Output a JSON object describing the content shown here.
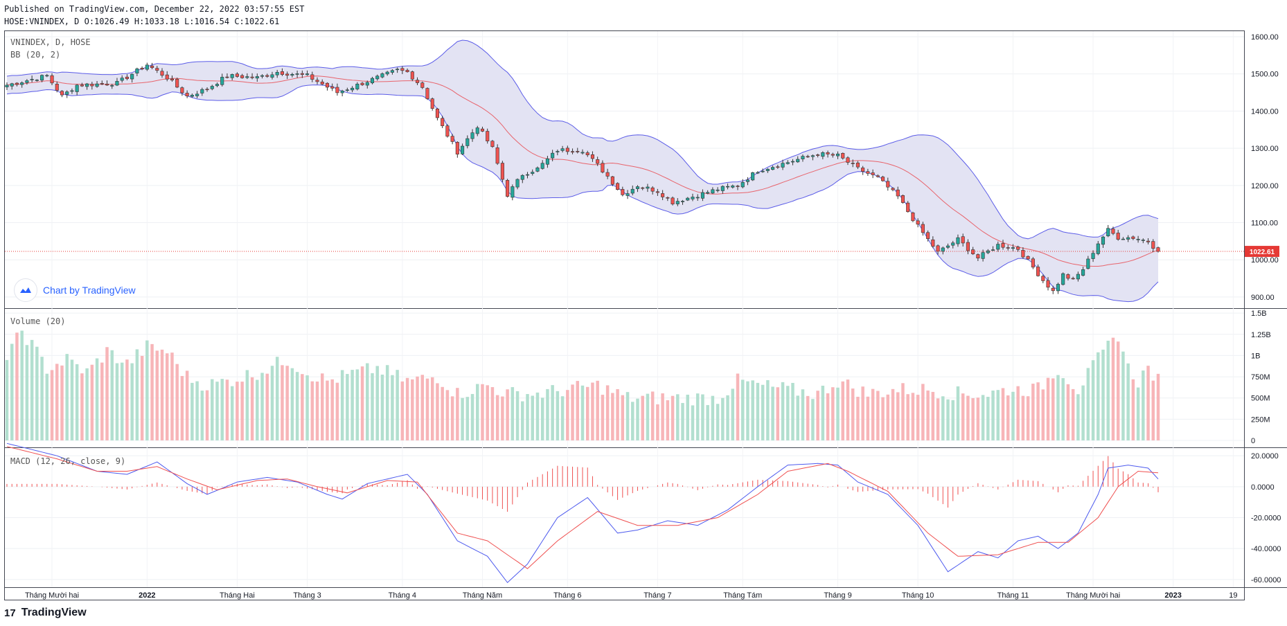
{
  "header": {
    "published": "Published on TradingView.com, December 22, 2022 03:57:55 EST",
    "ohlc": "HOSE:VNINDEX, D O:1026.49 H:1033.18 L:1016.54 C:1022.61"
  },
  "panes": {
    "price": {
      "symbol_label": "VNINDEX, D, HOSE",
      "indicator_label": "BB (20, 2)"
    },
    "volume": {
      "label": "Volume (20)"
    },
    "macd": {
      "label": "MACD (12, 26, close, 9)"
    }
  },
  "branding": {
    "chart_by": "Chart by TradingView",
    "footer": "TradingView"
  },
  "colors": {
    "up": "#26a69a",
    "down": "#ef5350",
    "up_vol": "#b2dfcf",
    "down_vol": "#f7b5b8",
    "bb_band": "#5b5ce8",
    "bb_fill": "#e3e3f3",
    "bb_basis": "#e8636b",
    "macd_line": "#4d5aee",
    "signal_line": "#ef4f4f",
    "hist": "#ef4f4f",
    "last_price": "#e53935"
  },
  "chart_data": {
    "type": "candlestick",
    "title": "VNINDEX, D, HOSE",
    "last_price": 1022.61,
    "last_price_label": "1022.61",
    "price_axis": {
      "range": [
        870,
        1615
      ],
      "ticks": [
        "1600.00",
        "1500.00",
        "1400.00",
        "1300.00",
        "1200.00",
        "1100.00",
        "1000.00",
        "900.00"
      ],
      "tick_values": [
        1600,
        1500,
        1400,
        1300,
        1200,
        1100,
        1000,
        900
      ]
    },
    "volume_axis": {
      "range": [
        0,
        1.55
      ],
      "unit": "B",
      "ticks": [
        "1.5B",
        "1.25B",
        "1B",
        "750M",
        "500M",
        "250M",
        "0"
      ],
      "tick_values": [
        1.5,
        1.25,
        1,
        0.75,
        0.5,
        0.25,
        0
      ]
    },
    "macd_axis": {
      "range": [
        -65,
        25
      ],
      "ticks": [
        "20.0000",
        "0.0000",
        "-20.0000",
        "-40.0000",
        "-60.0000"
      ],
      "tick_values": [
        20,
        0,
        -20,
        -40,
        -60
      ]
    },
    "x_axis": {
      "labels": [
        "Tháng Mười hai",
        "2022",
        "Tháng Hai",
        "Tháng 3",
        "Tháng 4",
        "Tháng Năm",
        "Tháng 6",
        "Tháng 7",
        "Tháng Tám",
        "Tháng 9",
        "Tháng 10",
        "Tháng 11",
        "Tháng Mười hai",
        "2023",
        "19"
      ],
      "label_bar_index": [
        9,
        28,
        46,
        60,
        79,
        95,
        112,
        130,
        147,
        166,
        182,
        201,
        217,
        233,
        245
      ],
      "bold": [
        "2022",
        "2023"
      ]
    },
    "close_keypoints": [
      {
        "i": 0,
        "v": 1470
      },
      {
        "i": 8,
        "v": 1495
      },
      {
        "i": 11,
        "v": 1440
      },
      {
        "i": 14,
        "v": 1470
      },
      {
        "i": 22,
        "v": 1475
      },
      {
        "i": 28,
        "v": 1525
      },
      {
        "i": 32,
        "v": 1490
      },
      {
        "i": 36,
        "v": 1440
      },
      {
        "i": 40,
        "v": 1460
      },
      {
        "i": 44,
        "v": 1495
      },
      {
        "i": 50,
        "v": 1490
      },
      {
        "i": 54,
        "v": 1505
      },
      {
        "i": 60,
        "v": 1495
      },
      {
        "i": 64,
        "v": 1465
      },
      {
        "i": 66,
        "v": 1450
      },
      {
        "i": 70,
        "v": 1470
      },
      {
        "i": 74,
        "v": 1490
      },
      {
        "i": 78,
        "v": 1510
      },
      {
        "i": 80,
        "v": 1505
      },
      {
        "i": 83,
        "v": 1465
      },
      {
        "i": 86,
        "v": 1380
      },
      {
        "i": 90,
        "v": 1290
      },
      {
        "i": 94,
        "v": 1360
      },
      {
        "i": 97,
        "v": 1300
      },
      {
        "i": 100,
        "v": 1175
      },
      {
        "i": 103,
        "v": 1230
      },
      {
        "i": 106,
        "v": 1245
      },
      {
        "i": 110,
        "v": 1295
      },
      {
        "i": 115,
        "v": 1295
      },
      {
        "i": 118,
        "v": 1255
      },
      {
        "i": 120,
        "v": 1225
      },
      {
        "i": 123,
        "v": 1175
      },
      {
        "i": 126,
        "v": 1200
      },
      {
        "i": 130,
        "v": 1185
      },
      {
        "i": 133,
        "v": 1155
      },
      {
        "i": 137,
        "v": 1170
      },
      {
        "i": 142,
        "v": 1190
      },
      {
        "i": 146,
        "v": 1200
      },
      {
        "i": 150,
        "v": 1240
      },
      {
        "i": 154,
        "v": 1255
      },
      {
        "i": 158,
        "v": 1270
      },
      {
        "i": 162,
        "v": 1285
      },
      {
        "i": 166,
        "v": 1280
      },
      {
        "i": 170,
        "v": 1245
      },
      {
        "i": 174,
        "v": 1220
      },
      {
        "i": 178,
        "v": 1170
      },
      {
        "i": 182,
        "v": 1090
      },
      {
        "i": 186,
        "v": 1020
      },
      {
        "i": 190,
        "v": 1055
      },
      {
        "i": 194,
        "v": 1005
      },
      {
        "i": 198,
        "v": 1040
      },
      {
        "i": 202,
        "v": 1030
      },
      {
        "i": 205,
        "v": 980
      },
      {
        "i": 207,
        "v": 945
      },
      {
        "i": 209,
        "v": 915
      },
      {
        "i": 211,
        "v": 960
      },
      {
        "i": 213,
        "v": 945
      },
      {
        "i": 215,
        "v": 975
      },
      {
        "i": 218,
        "v": 1045
      },
      {
        "i": 220,
        "v": 1080
      },
      {
        "i": 222,
        "v": 1060
      },
      {
        "i": 225,
        "v": 1060
      },
      {
        "i": 228,
        "v": 1050
      },
      {
        "i": 230,
        "v": 1022.61
      }
    ],
    "volume_keypoints_B": [
      {
        "i": 0,
        "v": 0.95
      },
      {
        "i": 3,
        "v": 1.3
      },
      {
        "i": 8,
        "v": 0.85
      },
      {
        "i": 12,
        "v": 0.95
      },
      {
        "i": 16,
        "v": 0.8
      },
      {
        "i": 20,
        "v": 1.05
      },
      {
        "i": 24,
        "v": 0.9
      },
      {
        "i": 28,
        "v": 1.1
      },
      {
        "i": 32,
        "v": 1.05
      },
      {
        "i": 36,
        "v": 0.75
      },
      {
        "i": 40,
        "v": 0.65
      },
      {
        "i": 44,
        "v": 0.7
      },
      {
        "i": 50,
        "v": 0.8
      },
      {
        "i": 56,
        "v": 0.95
      },
      {
        "i": 60,
        "v": 0.8
      },
      {
        "i": 64,
        "v": 0.7
      },
      {
        "i": 70,
        "v": 0.8
      },
      {
        "i": 74,
        "v": 0.85
      },
      {
        "i": 80,
        "v": 0.7
      },
      {
        "i": 86,
        "v": 0.75
      },
      {
        "i": 90,
        "v": 0.55
      },
      {
        "i": 96,
        "v": 0.65
      },
      {
        "i": 100,
        "v": 0.55
      },
      {
        "i": 106,
        "v": 0.55
      },
      {
        "i": 112,
        "v": 0.6
      },
      {
        "i": 118,
        "v": 0.65
      },
      {
        "i": 124,
        "v": 0.5
      },
      {
        "i": 130,
        "v": 0.5
      },
      {
        "i": 136,
        "v": 0.5
      },
      {
        "i": 142,
        "v": 0.5
      },
      {
        "i": 146,
        "v": 0.7
      },
      {
        "i": 150,
        "v": 0.65
      },
      {
        "i": 156,
        "v": 0.6
      },
      {
        "i": 162,
        "v": 0.55
      },
      {
        "i": 166,
        "v": 0.7
      },
      {
        "i": 172,
        "v": 0.55
      },
      {
        "i": 178,
        "v": 0.6
      },
      {
        "i": 184,
        "v": 0.6
      },
      {
        "i": 190,
        "v": 0.55
      },
      {
        "i": 196,
        "v": 0.55
      },
      {
        "i": 200,
        "v": 0.6
      },
      {
        "i": 206,
        "v": 0.6
      },
      {
        "i": 210,
        "v": 0.85
      },
      {
        "i": 214,
        "v": 0.6
      },
      {
        "i": 218,
        "v": 0.95
      },
      {
        "i": 222,
        "v": 1.25
      },
      {
        "i": 224,
        "v": 0.85
      },
      {
        "i": 226,
        "v": 0.7
      },
      {
        "i": 228,
        "v": 0.85
      },
      {
        "i": 230,
        "v": 0.7
      }
    ],
    "macd_keypoints": [
      {
        "i": 0,
        "v": 28
      },
      {
        "i": 10,
        "v": 20
      },
      {
        "i": 18,
        "v": 10
      },
      {
        "i": 24,
        "v": 8
      },
      {
        "i": 30,
        "v": 16
      },
      {
        "i": 36,
        "v": 2
      },
      {
        "i": 40,
        "v": -5
      },
      {
        "i": 46,
        "v": 3
      },
      {
        "i": 52,
        "v": 6
      },
      {
        "i": 58,
        "v": 3
      },
      {
        "i": 64,
        "v": -5
      },
      {
        "i": 67,
        "v": -8
      },
      {
        "i": 72,
        "v": 2
      },
      {
        "i": 80,
        "v": 8
      },
      {
        "i": 84,
        "v": -5
      },
      {
        "i": 90,
        "v": -35
      },
      {
        "i": 96,
        "v": -45
      },
      {
        "i": 100,
        "v": -62
      },
      {
        "i": 104,
        "v": -50
      },
      {
        "i": 110,
        "v": -20
      },
      {
        "i": 116,
        "v": -7
      },
      {
        "i": 122,
        "v": -30
      },
      {
        "i": 126,
        "v": -28
      },
      {
        "i": 132,
        "v": -22
      },
      {
        "i": 138,
        "v": -25
      },
      {
        "i": 144,
        "v": -15
      },
      {
        "i": 150,
        "v": 0
      },
      {
        "i": 156,
        "v": 14
      },
      {
        "i": 162,
        "v": 15
      },
      {
        "i": 166,
        "v": 14
      },
      {
        "i": 170,
        "v": 3
      },
      {
        "i": 176,
        "v": -5
      },
      {
        "i": 182,
        "v": -25
      },
      {
        "i": 188,
        "v": -55
      },
      {
        "i": 194,
        "v": -42
      },
      {
        "i": 198,
        "v": -46
      },
      {
        "i": 202,
        "v": -35
      },
      {
        "i": 206,
        "v": -32
      },
      {
        "i": 210,
        "v": -40
      },
      {
        "i": 214,
        "v": -30
      },
      {
        "i": 218,
        "v": -5
      },
      {
        "i": 220,
        "v": 12
      },
      {
        "i": 224,
        "v": 14
      },
      {
        "i": 228,
        "v": 12
      },
      {
        "i": 230,
        "v": 5
      }
    ],
    "signal_keypoints": [
      {
        "i": 0,
        "v": 26
      },
      {
        "i": 10,
        "v": 18
      },
      {
        "i": 18,
        "v": 10
      },
      {
        "i": 24,
        "v": 10
      },
      {
        "i": 30,
        "v": 13
      },
      {
        "i": 36,
        "v": 5
      },
      {
        "i": 42,
        "v": -2
      },
      {
        "i": 50,
        "v": 4
      },
      {
        "i": 56,
        "v": 5
      },
      {
        "i": 62,
        "v": 0
      },
      {
        "i": 68,
        "v": -4
      },
      {
        "i": 76,
        "v": 4
      },
      {
        "i": 82,
        "v": 3
      },
      {
        "i": 90,
        "v": -30
      },
      {
        "i": 96,
        "v": -35
      },
      {
        "i": 104,
        "v": -53
      },
      {
        "i": 110,
        "v": -35
      },
      {
        "i": 118,
        "v": -16
      },
      {
        "i": 126,
        "v": -25
      },
      {
        "i": 134,
        "v": -25
      },
      {
        "i": 142,
        "v": -20
      },
      {
        "i": 150,
        "v": -5
      },
      {
        "i": 156,
        "v": 10
      },
      {
        "i": 164,
        "v": 15
      },
      {
        "i": 168,
        "v": 10
      },
      {
        "i": 176,
        "v": -3
      },
      {
        "i": 184,
        "v": -30
      },
      {
        "i": 190,
        "v": -45
      },
      {
        "i": 198,
        "v": -44
      },
      {
        "i": 206,
        "v": -36
      },
      {
        "i": 212,
        "v": -36
      },
      {
        "i": 218,
        "v": -20
      },
      {
        "i": 222,
        "v": 0
      },
      {
        "i": 226,
        "v": 10
      },
      {
        "i": 230,
        "v": 9
      }
    ],
    "bars": 231
  }
}
